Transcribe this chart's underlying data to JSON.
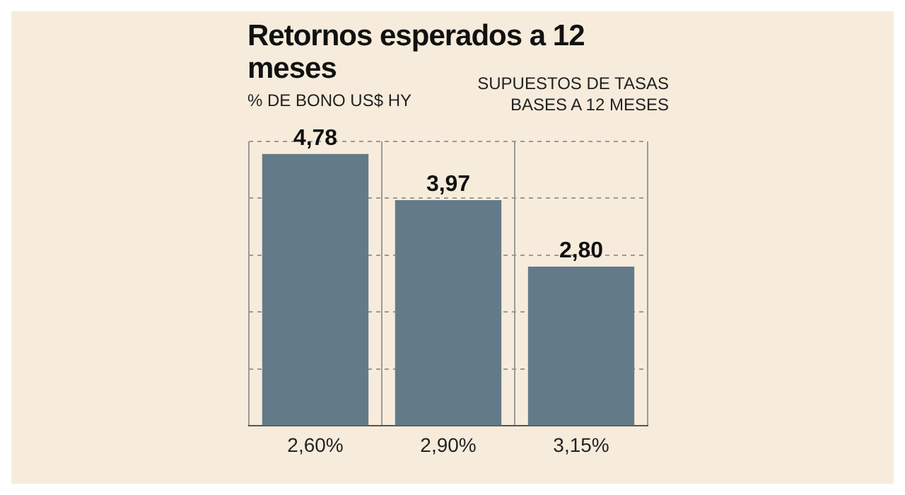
{
  "chart_data": {
    "type": "bar",
    "title": "Retornos esperados a 12 meses",
    "subtitle": "% DE BONO US$ HY",
    "xlabel": "SUPUESTOS DE TASAS BASES A 12 MESES",
    "categories": [
      "2,60%",
      "2,90%",
      "3,15%"
    ],
    "values": [
      4.78,
      3.97,
      2.8
    ],
    "value_labels": [
      "4,78",
      "3,97",
      "2,80"
    ],
    "color": "#637b89",
    "ylim": [
      0,
      5
    ],
    "yticks": [
      {
        "value": 0,
        "label": null
      },
      {
        "value": 1,
        "label": null
      },
      {
        "value": 2,
        "label": null
      },
      {
        "value": 3,
        "label": null
      },
      {
        "value": 4,
        "label": null
      },
      {
        "value": 5,
        "label": null
      }
    ],
    "grid": true,
    "legend": false
  }
}
